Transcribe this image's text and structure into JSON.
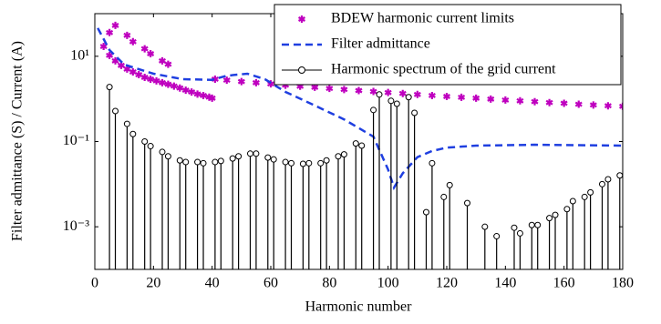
{
  "chart_data": {
    "type": "line",
    "xlabel": "Harmonic number",
    "ylabel": "Filter admittance (S) / Current (A)",
    "xlim": [
      0,
      180
    ],
    "xticks": [
      0,
      20,
      40,
      60,
      80,
      100,
      120,
      140,
      160,
      180
    ],
    "ylim": [
      0.0001,
      100
    ],
    "yscale": "log",
    "yticks": [
      {
        "value": 0.001,
        "label": "10⁻³"
      },
      {
        "value": 0.1,
        "label": "10⁻¹"
      },
      {
        "value": 10,
        "label": "10¹"
      }
    ],
    "legend": "upper right",
    "series": [
      {
        "name": "BDEW harmonic current limits",
        "color": "#bf00bf",
        "mode": "markers",
        "x": [
          5,
          7,
          11,
          13,
          17,
          19,
          23,
          25,
          3,
          5,
          7,
          9,
          11,
          13,
          15,
          17,
          19,
          21,
          23,
          25,
          27,
          29,
          31,
          33,
          35,
          37,
          39,
          40,
          41,
          45,
          50,
          55,
          60,
          65,
          70,
          75,
          80,
          85,
          90,
          95,
          100,
          105,
          110,
          115,
          120,
          125,
          130,
          135,
          140,
          145,
          150,
          155,
          160,
          165,
          170,
          175,
          180
        ],
        "values": [
          36,
          53,
          31,
          22,
          15,
          11.5,
          7.8,
          6.5,
          17,
          10.5,
          7.8,
          6.1,
          5.0,
          4.3,
          3.7,
          3.2,
          2.9,
          2.65,
          2.4,
          2.2,
          2.0,
          1.8,
          1.6,
          1.45,
          1.3,
          1.2,
          1.1,
          1.04,
          2.9,
          2.75,
          2.55,
          2.4,
          2.25,
          2.1,
          1.98,
          1.87,
          1.76,
          1.66,
          1.57,
          1.49,
          1.41,
          1.34,
          1.27,
          1.2,
          1.14,
          1.09,
          1.04,
          0.99,
          0.94,
          0.9,
          0.86,
          0.82,
          0.79,
          0.75,
          0.72,
          0.69,
          0.67
        ]
      },
      {
        "name": "Filter admittance",
        "color": "#1f3fe0",
        "mode": "dashed-line",
        "x": [
          1,
          5,
          10,
          20,
          30,
          40,
          45,
          52,
          58,
          65,
          75,
          85,
          95,
          100,
          102,
          105,
          110,
          115,
          120,
          130,
          150,
          180
        ],
        "values": [
          46,
          14,
          6.4,
          3.9,
          2.9,
          2.8,
          3.5,
          3.9,
          2.9,
          1.46,
          0.7,
          0.33,
          0.13,
          0.022,
          0.0083,
          0.018,
          0.043,
          0.06,
          0.072,
          0.08,
          0.084,
          0.08
        ]
      },
      {
        "name": "Harmonic spectrum of the grid current",
        "color": "#000000",
        "mode": "stem",
        "x": [
          5,
          7,
          11,
          13,
          17,
          19,
          23,
          25,
          29,
          31,
          35,
          37,
          41,
          43,
          47,
          49,
          53,
          55,
          59,
          61,
          65,
          67,
          71,
          73,
          77,
          79,
          83,
          85,
          89,
          91,
          95,
          97,
          101,
          103,
          107,
          109,
          113,
          115,
          119,
          121,
          127,
          133,
          137,
          143,
          145,
          149,
          151,
          155,
          157,
          161,
          163,
          167,
          169,
          173,
          175,
          179
        ],
        "values": [
          1.9,
          0.52,
          0.26,
          0.15,
          0.1,
          0.078,
          0.057,
          0.045,
          0.036,
          0.033,
          0.033,
          0.031,
          0.033,
          0.035,
          0.04,
          0.045,
          0.052,
          0.052,
          0.042,
          0.038,
          0.033,
          0.031,
          0.03,
          0.031,
          0.031,
          0.036,
          0.045,
          0.05,
          0.09,
          0.08,
          0.55,
          1.27,
          0.9,
          0.77,
          1.1,
          0.47,
          0.0022,
          0.031,
          0.005,
          0.0095,
          0.0036,
          0.001,
          0.0006,
          0.00095,
          0.0007,
          0.0011,
          0.0011,
          0.0016,
          0.0019,
          0.0026,
          0.004,
          0.005,
          0.0064,
          0.01,
          0.013,
          0.016
        ]
      }
    ]
  }
}
